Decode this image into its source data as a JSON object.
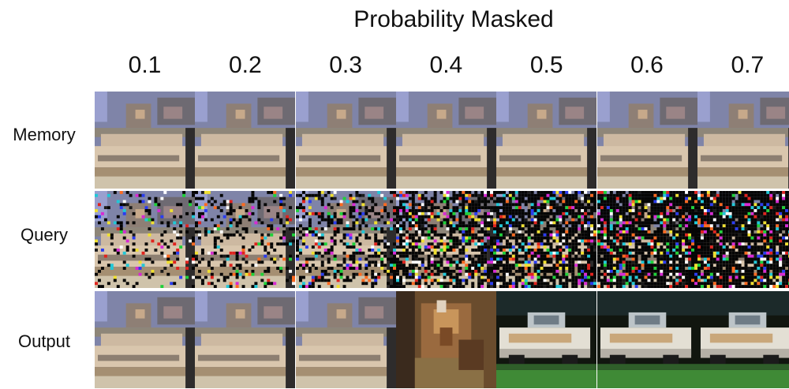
{
  "figure": {
    "title": "Probability Masked",
    "columns": [
      "0.1",
      "0.2",
      "0.3",
      "0.4",
      "0.5",
      "0.6",
      "0.7"
    ],
    "rows": [
      {
        "label": "Memory",
        "images": [
          "boat",
          "boat",
          "boat",
          "boat",
          "boat",
          "boat",
          "boat"
        ]
      },
      {
        "label": "Query",
        "mask_probability": [
          0.1,
          0.2,
          0.3,
          0.4,
          0.5,
          0.6,
          0.7
        ]
      },
      {
        "label": "Output",
        "images": [
          "boat",
          "boat",
          "boat",
          "cat",
          "car",
          "car",
          "car"
        ]
      }
    ]
  },
  "colors": {
    "sky": "#7f84a8",
    "building": "#8e7f75",
    "boat_hull": "#d9c6ad",
    "ground": "#a58f72",
    "cat_fur": "#9a6a3f",
    "car_body": "#e3dfd4",
    "grass": "#3f8a36",
    "dark_bg": "#11160f"
  }
}
